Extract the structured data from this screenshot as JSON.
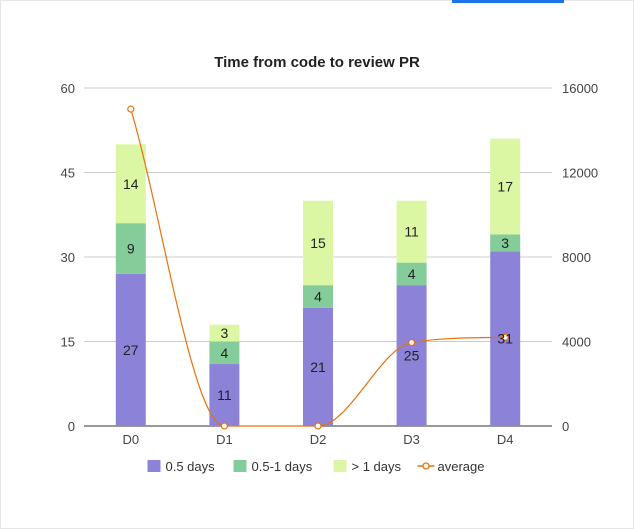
{
  "chart_data": {
    "type": "bar",
    "stacked": true,
    "title": "Time from code to review PR",
    "categories": [
      "D0",
      "D1",
      "D2",
      "D3",
      "D4"
    ],
    "series": [
      {
        "name": "0.5 days",
        "values": [
          27,
          11,
          21,
          25,
          31
        ],
        "color": "#8c83d9"
      },
      {
        "name": "0.5-1 days",
        "values": [
          9,
          4,
          4,
          4,
          3
        ],
        "color": "#85cc9b"
      },
      {
        "name": "> 1 days",
        "values": [
          14,
          3,
          15,
          11,
          17
        ],
        "color": "#dbf7a3"
      }
    ],
    "line_series": {
      "name": "average",
      "axis": "right",
      "values": [
        15000,
        0,
        0,
        3950,
        4200
      ],
      "color": "#e8710a"
    },
    "y_left": {
      "min": 0,
      "max": 60,
      "ticks": [
        "0",
        "15",
        "30",
        "45",
        "60"
      ]
    },
    "y_right": {
      "min": 0,
      "max": 16000,
      "ticks": [
        "0",
        "4000",
        "8000",
        "12000",
        "16000"
      ]
    },
    "legend_position": "bottom",
    "grid": true
  }
}
